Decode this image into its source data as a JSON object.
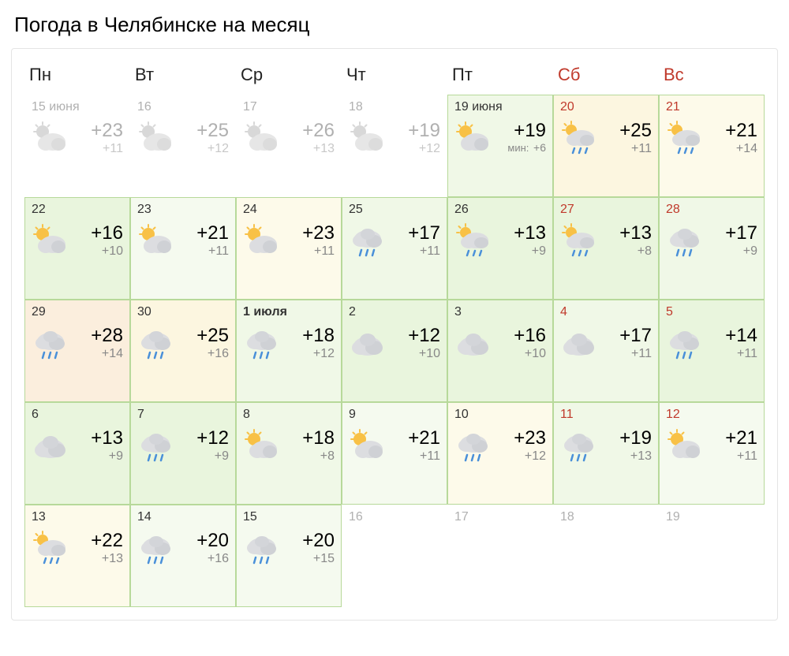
{
  "title": "Погода в Челябинске на месяц",
  "daysOfWeek": [
    {
      "label": "Пн",
      "weekend": false
    },
    {
      "label": "Вт",
      "weekend": false
    },
    {
      "label": "Ср",
      "weekend": false
    },
    {
      "label": "Чт",
      "weekend": false
    },
    {
      "label": "Пт",
      "weekend": false
    },
    {
      "label": "Сб",
      "weekend": true
    },
    {
      "label": "Вс",
      "weekend": true
    }
  ],
  "cells": [
    {
      "state": "past",
      "date": "15 июня",
      "weekend": false,
      "bold": false,
      "icon": "sun-cloud-grey",
      "high": "+23",
      "low": "+11",
      "minLabel": "",
      "bg": "bg-white"
    },
    {
      "state": "past",
      "date": "16",
      "weekend": false,
      "bold": false,
      "icon": "sun-cloud-grey",
      "high": "+25",
      "low": "+12",
      "minLabel": "",
      "bg": "bg-white"
    },
    {
      "state": "past",
      "date": "17",
      "weekend": false,
      "bold": false,
      "icon": "sun-cloud-grey",
      "high": "+26",
      "low": "+13",
      "minLabel": "",
      "bg": "bg-white"
    },
    {
      "state": "past",
      "date": "18",
      "weekend": false,
      "bold": false,
      "icon": "sun-cloud-grey",
      "high": "+19",
      "low": "+12",
      "minLabel": "",
      "bg": "bg-white"
    },
    {
      "state": "active",
      "date": "19 июня",
      "weekend": false,
      "bold": false,
      "icon": "sun-cloud",
      "high": "+19",
      "low": "+6",
      "minLabel": "мин: ",
      "bg": "bg-green2"
    },
    {
      "state": "active",
      "date": "20",
      "weekend": true,
      "bold": false,
      "icon": "sun-cloud-rain",
      "high": "+25",
      "low": "+11",
      "minLabel": "",
      "bg": "bg-yellow1"
    },
    {
      "state": "active",
      "date": "21",
      "weekend": true,
      "bold": false,
      "icon": "sun-cloud-rain",
      "high": "+21",
      "low": "+14",
      "minLabel": "",
      "bg": "bg-yellow2"
    },
    {
      "state": "active",
      "date": "22",
      "weekend": false,
      "bold": false,
      "icon": "sun-cloud",
      "high": "+16",
      "low": "+10",
      "minLabel": "",
      "bg": "bg-green1"
    },
    {
      "state": "active",
      "date": "23",
      "weekend": false,
      "bold": false,
      "icon": "sun-cloud",
      "high": "+21",
      "low": "+11",
      "minLabel": "",
      "bg": "bg-green3"
    },
    {
      "state": "active",
      "date": "24",
      "weekend": false,
      "bold": false,
      "icon": "sun-cloud",
      "high": "+23",
      "low": "+11",
      "minLabel": "",
      "bg": "bg-yellow2"
    },
    {
      "state": "active",
      "date": "25",
      "weekend": false,
      "bold": false,
      "icon": "cloud-rain",
      "high": "+17",
      "low": "+11",
      "minLabel": "",
      "bg": "bg-green2"
    },
    {
      "state": "active",
      "date": "26",
      "weekend": false,
      "bold": false,
      "icon": "sun-cloud-rain",
      "high": "+13",
      "low": "+9",
      "minLabel": "",
      "bg": "bg-green1"
    },
    {
      "state": "active",
      "date": "27",
      "weekend": true,
      "bold": false,
      "icon": "sun-cloud-rain",
      "high": "+13",
      "low": "+8",
      "minLabel": "",
      "bg": "bg-green1"
    },
    {
      "state": "active",
      "date": "28",
      "weekend": true,
      "bold": false,
      "icon": "cloud-rain",
      "high": "+17",
      "low": "+9",
      "minLabel": "",
      "bg": "bg-green2"
    },
    {
      "state": "active",
      "date": "29",
      "weekend": false,
      "bold": false,
      "icon": "cloud-rain",
      "high": "+28",
      "low": "+14",
      "minLabel": "",
      "bg": "bg-orange1"
    },
    {
      "state": "active",
      "date": "30",
      "weekend": false,
      "bold": false,
      "icon": "cloud-rain",
      "high": "+25",
      "low": "+16",
      "minLabel": "",
      "bg": "bg-yellow1"
    },
    {
      "state": "active",
      "date": "1 июля",
      "weekend": false,
      "bold": true,
      "icon": "cloud-rain",
      "high": "+18",
      "low": "+12",
      "minLabel": "",
      "bg": "bg-green2"
    },
    {
      "state": "active",
      "date": "2",
      "weekend": false,
      "bold": false,
      "icon": "cloud",
      "high": "+12",
      "low": "+10",
      "minLabel": "",
      "bg": "bg-green1"
    },
    {
      "state": "active",
      "date": "3",
      "weekend": false,
      "bold": false,
      "icon": "cloud",
      "high": "+16",
      "low": "+10",
      "minLabel": "",
      "bg": "bg-green1"
    },
    {
      "state": "active",
      "date": "4",
      "weekend": true,
      "bold": false,
      "icon": "cloud",
      "high": "+17",
      "low": "+11",
      "minLabel": "",
      "bg": "bg-green2"
    },
    {
      "state": "active",
      "date": "5",
      "weekend": true,
      "bold": false,
      "icon": "cloud-rain",
      "high": "+14",
      "low": "+11",
      "minLabel": "",
      "bg": "bg-green1"
    },
    {
      "state": "active",
      "date": "6",
      "weekend": false,
      "bold": false,
      "icon": "cloud",
      "high": "+13",
      "low": "+9",
      "minLabel": "",
      "bg": "bg-green1"
    },
    {
      "state": "active",
      "date": "7",
      "weekend": false,
      "bold": false,
      "icon": "cloud-rain",
      "high": "+12",
      "low": "+9",
      "minLabel": "",
      "bg": "bg-green1"
    },
    {
      "state": "active",
      "date": "8",
      "weekend": false,
      "bold": false,
      "icon": "sun-cloud",
      "high": "+18",
      "low": "+8",
      "minLabel": "",
      "bg": "bg-green2"
    },
    {
      "state": "active",
      "date": "9",
      "weekend": false,
      "bold": false,
      "icon": "sun-cloud",
      "high": "+21",
      "low": "+11",
      "minLabel": "",
      "bg": "bg-green3"
    },
    {
      "state": "active",
      "date": "10",
      "weekend": false,
      "bold": false,
      "icon": "cloud-rain",
      "high": "+23",
      "low": "+12",
      "minLabel": "",
      "bg": "bg-yellow2"
    },
    {
      "state": "active",
      "date": "11",
      "weekend": true,
      "bold": false,
      "icon": "cloud-rain",
      "high": "+19",
      "low": "+13",
      "minLabel": "",
      "bg": "bg-green2"
    },
    {
      "state": "active",
      "date": "12",
      "weekend": true,
      "bold": false,
      "icon": "sun-cloud",
      "high": "+21",
      "low": "+11",
      "minLabel": "",
      "bg": "bg-green3"
    },
    {
      "state": "active",
      "date": "13",
      "weekend": false,
      "bold": false,
      "icon": "sun-cloud-rain",
      "high": "+22",
      "low": "+13",
      "minLabel": "",
      "bg": "bg-yellow2"
    },
    {
      "state": "active",
      "date": "14",
      "weekend": false,
      "bold": false,
      "icon": "cloud-rain",
      "high": "+20",
      "low": "+16",
      "minLabel": "",
      "bg": "bg-green3"
    },
    {
      "state": "active",
      "date": "15",
      "weekend": false,
      "bold": false,
      "icon": "cloud-rain",
      "high": "+20",
      "low": "+15",
      "minLabel": "",
      "bg": "bg-green3"
    },
    {
      "state": "empty",
      "date": "16",
      "weekend": false,
      "bold": false,
      "icon": "",
      "high": "",
      "low": "",
      "minLabel": "",
      "bg": "bg-white"
    },
    {
      "state": "empty",
      "date": "17",
      "weekend": false,
      "bold": false,
      "icon": "",
      "high": "",
      "low": "",
      "minLabel": "",
      "bg": "bg-white"
    },
    {
      "state": "empty",
      "date": "18",
      "weekend": true,
      "bold": false,
      "icon": "",
      "high": "",
      "low": "",
      "minLabel": "",
      "bg": "bg-white"
    },
    {
      "state": "empty",
      "date": "19",
      "weekend": true,
      "bold": false,
      "icon": "",
      "high": "",
      "low": "",
      "minLabel": "",
      "bg": "bg-white"
    }
  ],
  "iconColors": {
    "sun": "#f8c146",
    "cloudLight": "#dcdde0",
    "cloudDark": "#bfc1c5",
    "cloudGrey": "#d8d8d8",
    "rain": "#4a90d9"
  }
}
